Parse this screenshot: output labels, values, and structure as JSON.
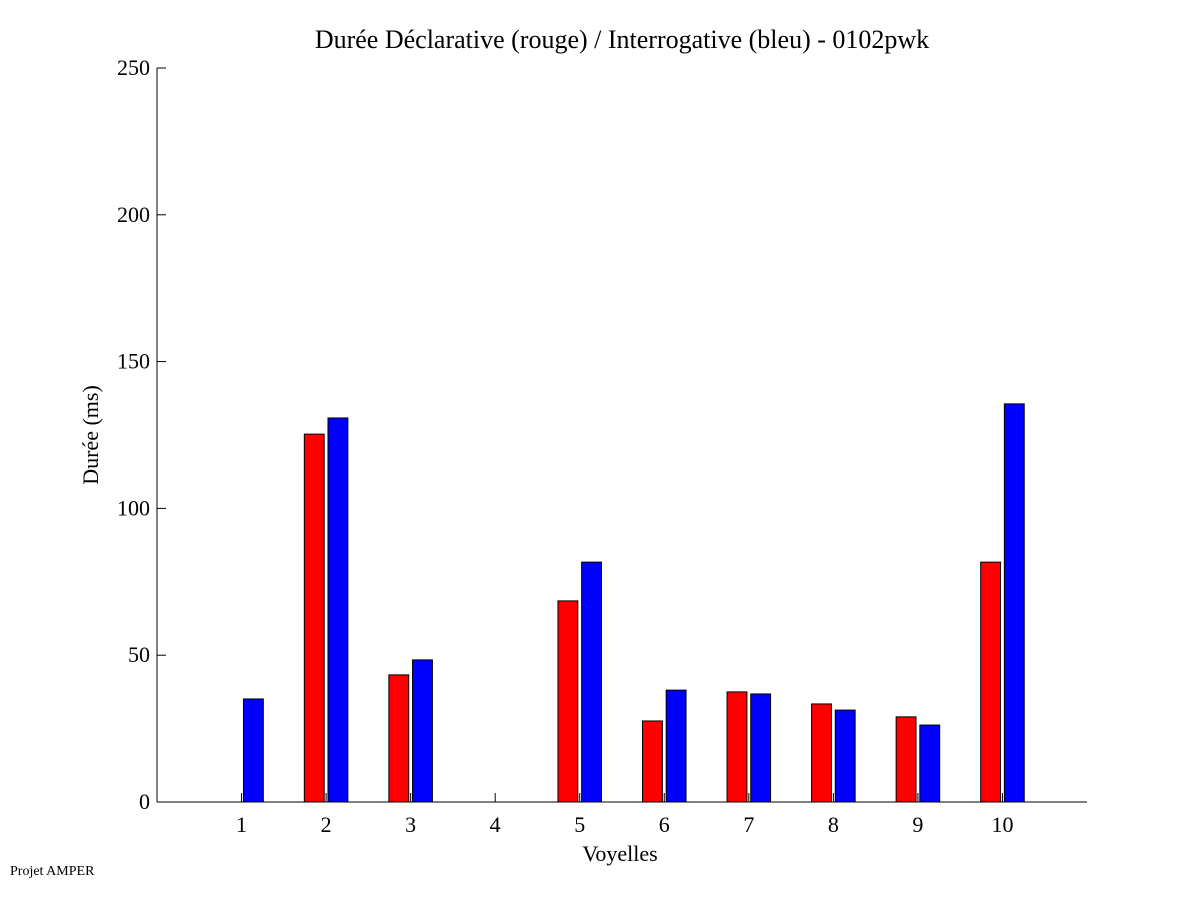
{
  "chart_data": {
    "type": "bar",
    "title": "Durée Déclarative (rouge) / Interrogative (bleu) - 0102pwk",
    "xlabel": "Voyelles",
    "ylabel": "Durée (ms)",
    "categories": [
      "1",
      "2",
      "3",
      "4",
      "5",
      "6",
      "7",
      "8",
      "9",
      "10"
    ],
    "ylim": [
      0,
      250
    ],
    "xlim": [
      0,
      11
    ],
    "yticks": [
      0,
      50,
      100,
      150,
      200,
      250
    ],
    "grid": false,
    "series": [
      {
        "color": "#ff0000",
        "values": [
          0,
          125.3,
          43.3,
          0,
          68.5,
          27.6,
          37.5,
          33.4,
          29.0,
          81.7
        ]
      },
      {
        "color": "#0000ff",
        "values": [
          35.1,
          130.8,
          48.4,
          0,
          81.7,
          38.1,
          36.8,
          31.3,
          26.2,
          135.6
        ]
      }
    ]
  },
  "footer": "Projet AMPER"
}
